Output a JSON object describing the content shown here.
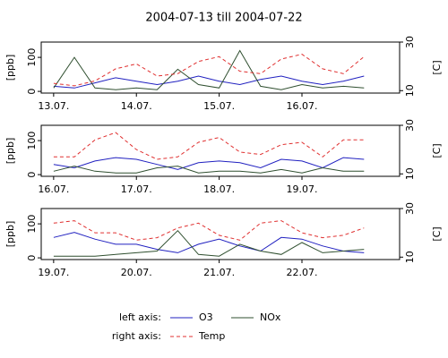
{
  "title": "2004-07-13 till 2004-07-22",
  "legend": {
    "left_label": "left axis:",
    "right_label": "right axis:"
  },
  "chart_data": [
    {
      "type": "line",
      "ylabel": "[ppb]",
      "y2label": "[C]",
      "x": [
        13,
        13.25,
        13.5,
        13.75,
        14,
        14.25,
        14.5,
        14.75,
        15,
        15.25,
        15.5,
        15.75,
        16,
        16.25,
        16.5,
        16.75
      ],
      "xlim": [
        12.85,
        17.18
      ],
      "xticks": [
        {
          "value": 13,
          "label": "13.07."
        },
        {
          "value": 14,
          "label": "14.07."
        },
        {
          "value": 15,
          "label": "15.07."
        },
        {
          "value": 16,
          "label": "16.07."
        }
      ],
      "ylim": [
        -5,
        145
      ],
      "yticks": [
        0,
        100
      ],
      "y2lim": [
        9,
        30
      ],
      "y2ticks": [
        10,
        30
      ],
      "series": [
        {
          "name": "O3",
          "color": "#2020c0",
          "style": "solid",
          "values": [
            15,
            10,
            25,
            40,
            30,
            20,
            30,
            45,
            30,
            20,
            35,
            45,
            30,
            20,
            30,
            45
          ]
        },
        {
          "name": "NOx",
          "color": "#2f4f2f",
          "style": "solid",
          "values": [
            10,
            100,
            10,
            5,
            10,
            5,
            65,
            20,
            10,
            120,
            15,
            5,
            20,
            10,
            15,
            10
          ]
        },
        {
          "name": "Temp",
          "color": "#e03030",
          "style": "dashed",
          "axis": "y2",
          "values": [
            13,
            12,
            14,
            19,
            21,
            16,
            17,
            22,
            24,
            18,
            17,
            23,
            25,
            19,
            17,
            24
          ]
        }
      ]
    },
    {
      "type": "line",
      "ylabel": "[ppb]",
      "y2label": "[C]",
      "x": [
        16,
        16.25,
        16.5,
        16.75,
        17,
        17.25,
        17.5,
        17.75,
        18,
        18.25,
        18.5,
        18.75,
        19,
        19.25,
        19.5,
        19.75
      ],
      "xlim": [
        15.85,
        20.18
      ],
      "xticks": [
        {
          "value": 16,
          "label": "16.07."
        },
        {
          "value": 17,
          "label": "17.07."
        },
        {
          "value": 18,
          "label": "18.07."
        },
        {
          "value": 19,
          "label": "19.07."
        }
      ],
      "ylim": [
        -5,
        145
      ],
      "yticks": [
        0,
        100
      ],
      "y2lim": [
        9,
        30
      ],
      "y2ticks": [
        10,
        30
      ],
      "series": [
        {
          "name": "O3",
          "color": "#2020c0",
          "style": "solid",
          "values": [
            30,
            20,
            40,
            50,
            45,
            30,
            15,
            35,
            40,
            35,
            20,
            45,
            40,
            20,
            50,
            45
          ]
        },
        {
          "name": "NOx",
          "color": "#2f4f2f",
          "style": "solid",
          "values": [
            10,
            25,
            10,
            5,
            5,
            20,
            25,
            5,
            10,
            10,
            5,
            15,
            5,
            20,
            10,
            10
          ]
        },
        {
          "name": "Temp",
          "color": "#e03030",
          "style": "dashed",
          "axis": "y2",
          "values": [
            17,
            17,
            24,
            27,
            20,
            16,
            17,
            23,
            25,
            19,
            18,
            22,
            23,
            17,
            24,
            24
          ]
        }
      ]
    },
    {
      "type": "line",
      "ylabel": "[ppb]",
      "y2label": "[C]",
      "x": [
        19,
        19.25,
        19.5,
        19.75,
        20,
        20.25,
        20.5,
        20.75,
        21,
        21.25,
        21.5,
        21.75,
        22,
        22.25,
        22.5,
        22.75
      ],
      "xlim": [
        18.85,
        23.18
      ],
      "xticks": [
        {
          "value": 19,
          "label": "19.07."
        },
        {
          "value": 20,
          "label": "20.07."
        },
        {
          "value": 21,
          "label": "21.07."
        },
        {
          "value": 22,
          "label": "22.07."
        }
      ],
      "ylim": [
        -5,
        145
      ],
      "yticks": [
        0,
        100
      ],
      "y2lim": [
        9,
        30
      ],
      "y2ticks": [
        10,
        30
      ],
      "series": [
        {
          "name": "O3",
          "color": "#2020c0",
          "style": "solid",
          "values": [
            60,
            75,
            55,
            40,
            40,
            25,
            15,
            40,
            55,
            35,
            20,
            60,
            55,
            35,
            20,
            15
          ]
        },
        {
          "name": "NOx",
          "color": "#2f4f2f",
          "style": "solid",
          "values": [
            5,
            5,
            5,
            10,
            15,
            20,
            80,
            10,
            5,
            40,
            20,
            10,
            45,
            15,
            20,
            25
          ]
        },
        {
          "name": "Temp",
          "color": "#e03030",
          "style": "dashed",
          "axis": "y2",
          "values": [
            24,
            25,
            20,
            20,
            17,
            18,
            22,
            24,
            19,
            17,
            24,
            25,
            20,
            18,
            19,
            22
          ]
        }
      ]
    }
  ]
}
